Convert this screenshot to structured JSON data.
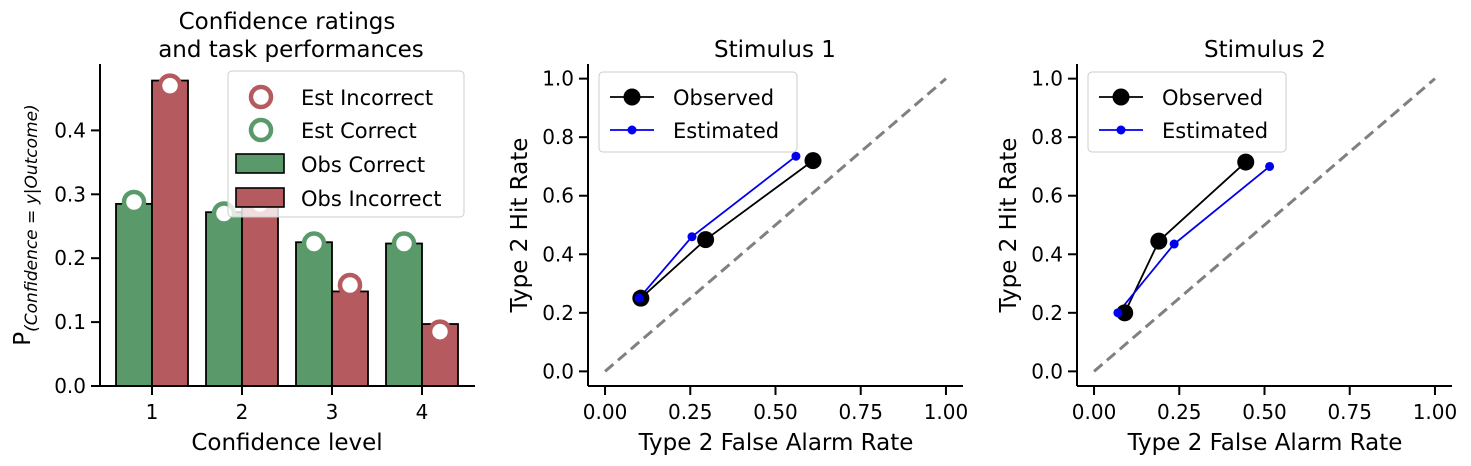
{
  "colors": {
    "correct": "#5a9a6a",
    "incorrect": "#b55a5e",
    "observed": "#000000",
    "estimated": "#0000ee",
    "diagonal": "#808080"
  },
  "chart_data": [
    {
      "type": "bar",
      "title_line1": "Confidence ratings",
      "title_line2": "and task performances",
      "xlabel": "Confidence level",
      "ylabel_main": "P",
      "ylabel_sub": "(Confidence = y|Outcome)",
      "categories": [
        "1",
        "2",
        "3",
        "4"
      ],
      "ylim": [
        0,
        0.5
      ],
      "yticks": [
        "0.0",
        "0.1",
        "0.2",
        "0.3",
        "0.4"
      ],
      "series": [
        {
          "name": "Obs Correct",
          "kind": "bar",
          "values": [
            0.285,
            0.272,
            0.225,
            0.223
          ]
        },
        {
          "name": "Obs Incorrect",
          "kind": "bar",
          "values": [
            0.478,
            0.29,
            0.148,
            0.097
          ]
        },
        {
          "name": "Est Incorrect",
          "kind": "marker",
          "values": [
            0.47,
            0.285,
            0.158,
            0.085
          ]
        },
        {
          "name": "Est Correct",
          "kind": "marker",
          "values": [
            0.288,
            0.27,
            0.223,
            0.223
          ]
        }
      ],
      "legend": [
        "Est Incorrect",
        "Est Correct",
        "Obs Correct",
        "Obs Incorrect"
      ],
      "legend_position": "top-right"
    },
    {
      "type": "line",
      "title": "Stimulus 1",
      "xlabel": "Type 2 False Alarm Rate",
      "ylabel": "Type 2 Hit Rate",
      "xlim": [
        -0.05,
        1.05
      ],
      "ylim": [
        -0.05,
        1.05
      ],
      "xticks": [
        "0.00",
        "0.25",
        "0.50",
        "0.75",
        "1.00"
      ],
      "yticks": [
        "0.0",
        "0.2",
        "0.4",
        "0.6",
        "0.8",
        "1.0"
      ],
      "series": [
        {
          "name": "Observed",
          "x": [
            0.105,
            0.295,
            0.61
          ],
          "y": [
            0.25,
            0.45,
            0.72
          ]
        },
        {
          "name": "Estimated",
          "x": [
            0.1,
            0.255,
            0.56
          ],
          "y": [
            0.25,
            0.46,
            0.735
          ]
        }
      ],
      "legend_position": "top-left"
    },
    {
      "type": "line",
      "title": "Stimulus 2",
      "xlabel": "Type 2 False Alarm Rate",
      "ylabel": "Type 2 Hit Rate",
      "xlim": [
        -0.05,
        1.05
      ],
      "ylim": [
        -0.05,
        1.05
      ],
      "xticks": [
        "0.00",
        "0.25",
        "0.50",
        "0.75",
        "1.00"
      ],
      "yticks": [
        "0.0",
        "0.2",
        "0.4",
        "0.6",
        "0.8",
        "1.0"
      ],
      "series": [
        {
          "name": "Observed",
          "x": [
            0.09,
            0.19,
            0.445
          ],
          "y": [
            0.2,
            0.445,
            0.715
          ]
        },
        {
          "name": "Estimated",
          "x": [
            0.07,
            0.235,
            0.515
          ],
          "y": [
            0.2,
            0.435,
            0.7
          ]
        }
      ],
      "legend_position": "top-left"
    }
  ]
}
